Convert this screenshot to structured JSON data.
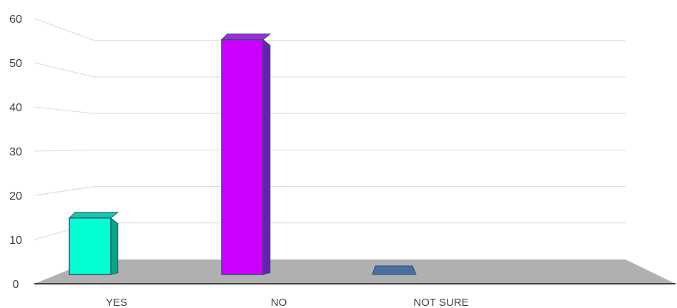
{
  "chart_data": {
    "type": "bar",
    "three_d": true,
    "categories": [
      "YES",
      "NO",
      "NOT SURE"
    ],
    "values": [
      13,
      54,
      0
    ],
    "colors": {
      "YES": {
        "front": "#00ffd2",
        "side": "#00a884",
        "top": "#1ac9a8"
      },
      "NO": {
        "front": "#cc00ff",
        "side": "#6a1fb3",
        "top": "#9b2fd6"
      },
      "NOT SURE": {
        "front": "#4a6fa0",
        "side": "#2f4b78",
        "top": "#4a6fa0"
      }
    },
    "ylim": [
      0,
      60
    ],
    "yticks": [
      0,
      10,
      20,
      30,
      40,
      50,
      60
    ],
    "title": "",
    "xlabel": "",
    "ylabel": "",
    "grid": true,
    "legend": "none",
    "floor_color": "#b0b0b0",
    "gridline_color": "#d9d9d9"
  }
}
